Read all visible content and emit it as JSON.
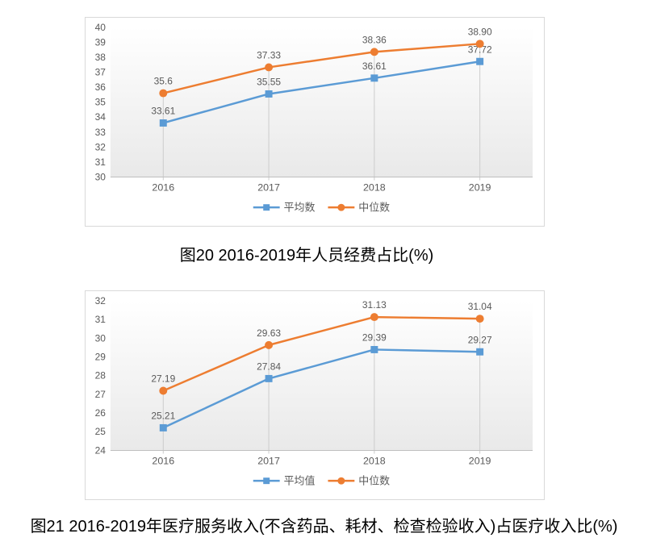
{
  "page": {
    "background": "#ffffff"
  },
  "theme": {
    "series_blue": "#5B9BD5",
    "series_orange": "#ED7D31",
    "chart_border": "#d9d9d9",
    "axis_line": "#bfbfbf",
    "drop_line": "#cccccc",
    "label_text": "#595959",
    "plot_gradient_top": "#ffffff",
    "plot_gradient_bottom": "#e9e9e9",
    "caption_text": "#000000"
  },
  "chart_data": [
    {
      "type": "line",
      "caption": "图20 2016-2019年人员经费占比(%)",
      "categories": [
        "2016",
        "2017",
        "2018",
        "2019"
      ],
      "series": [
        {
          "name": "平均数",
          "marker": "square",
          "color": "#5B9BD5",
          "values": [
            33.61,
            35.55,
            36.61,
            37.72
          ],
          "labels": [
            "33.61",
            "35.55",
            "36.61",
            "37.72"
          ]
        },
        {
          "name": "中位数",
          "marker": "circle",
          "color": "#ED7D31",
          "values": [
            35.6,
            37.33,
            38.36,
            38.9
          ],
          "labels": [
            "35.6",
            "37.33",
            "38.36",
            "38.90"
          ]
        }
      ],
      "ylim": [
        30,
        40
      ],
      "y_step": 1,
      "xlabel": "",
      "ylabel": "",
      "grid": false,
      "drop_lines": true,
      "legend_position": "bottom",
      "legend": [
        "平均数",
        "中位数"
      ]
    },
    {
      "type": "line",
      "caption": "图21 2016-2019年医疗服务收入(不含药品、耗材、检查检验收入)占医疗收入比(%)",
      "categories": [
        "2016",
        "2017",
        "2018",
        "2019"
      ],
      "series": [
        {
          "name": "平均值",
          "marker": "square",
          "color": "#5B9BD5",
          "values": [
            25.21,
            27.84,
            29.39,
            29.27
          ],
          "labels": [
            "25.21",
            "27.84",
            "29.39",
            "29.27"
          ]
        },
        {
          "name": "中位数",
          "marker": "circle",
          "color": "#ED7D31",
          "values": [
            27.19,
            29.63,
            31.13,
            31.04
          ],
          "labels": [
            "27.19",
            "29.63",
            "31.13",
            "31.04"
          ]
        }
      ],
      "ylim": [
        24,
        32
      ],
      "y_step": 1,
      "xlabel": "",
      "ylabel": "",
      "grid": false,
      "drop_lines": true,
      "legend_position": "bottom",
      "legend": [
        "平均值",
        "中位数"
      ]
    }
  ]
}
